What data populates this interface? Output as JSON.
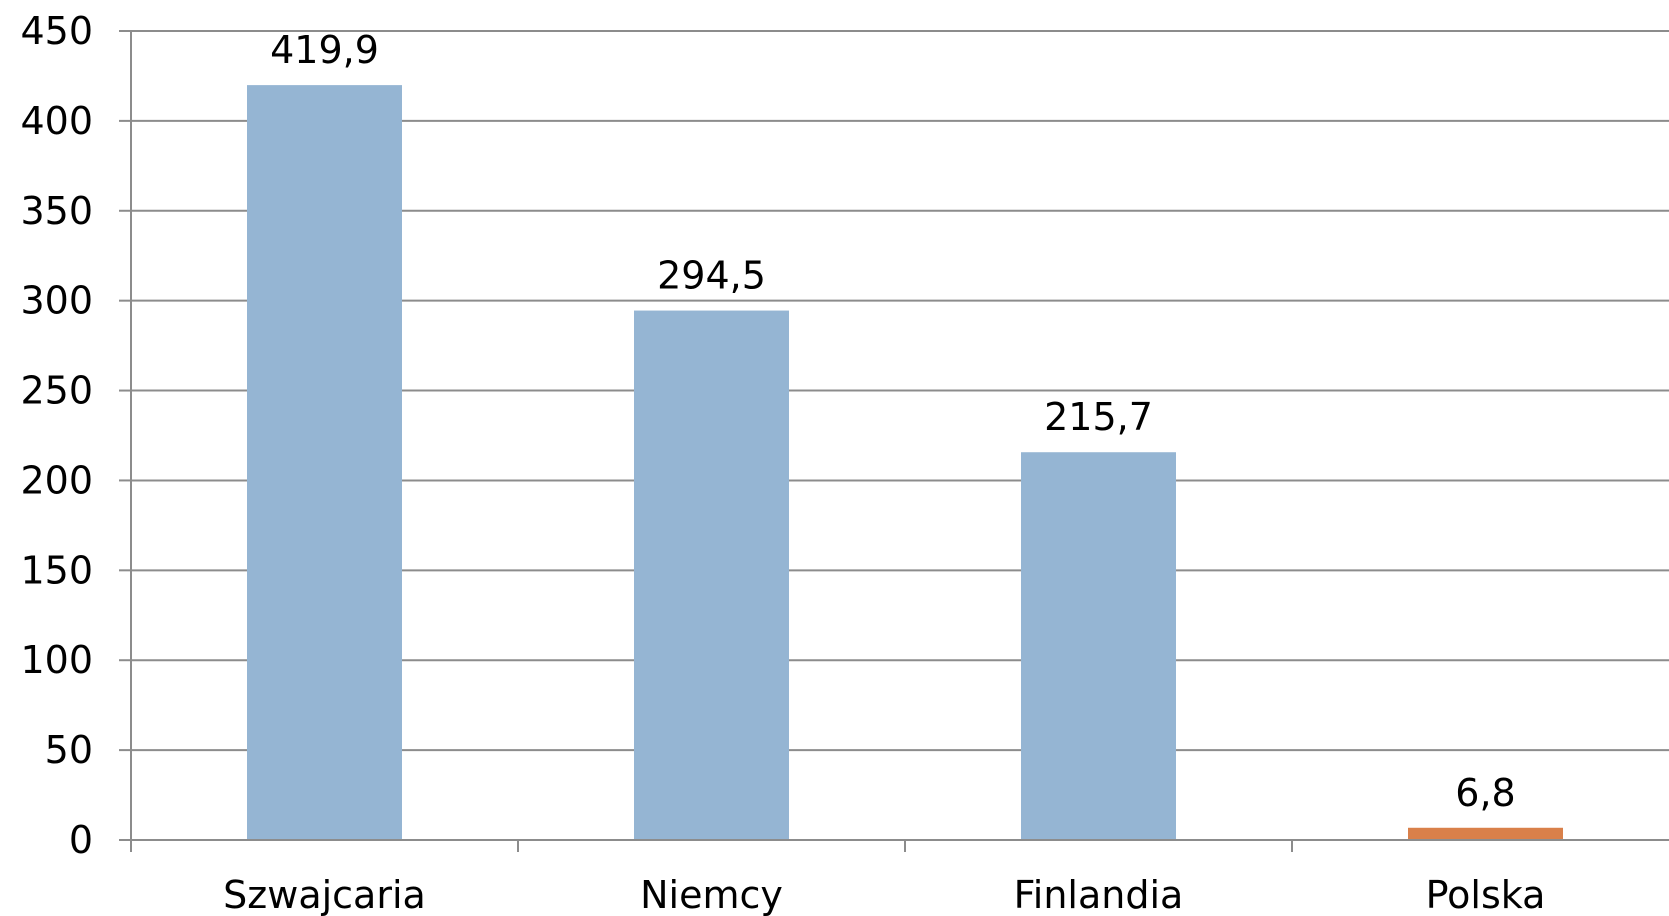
{
  "chart_data": {
    "type": "bar",
    "categories": [
      "Szwajcaria",
      "Niemcy",
      "Finlandia",
      "Polska"
    ],
    "values": [
      419.9,
      294.5,
      215.7,
      6.8
    ],
    "data_labels": [
      "419,9",
      "294,5",
      "215,7",
      "6,8"
    ],
    "bar_colors": [
      "#95b5d3",
      "#95b5d3",
      "#95b5d3",
      "#d9804a"
    ],
    "ylim": [
      0,
      450
    ],
    "y_ticks": [
      0,
      50,
      100,
      150,
      200,
      250,
      300,
      350,
      400,
      450
    ],
    "grid": true,
    "legend": "none",
    "title": "",
    "xlabel": "",
    "ylabel": ""
  }
}
